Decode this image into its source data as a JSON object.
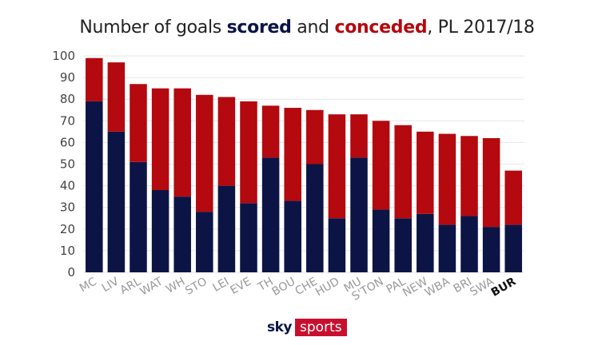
{
  "title": {
    "prefix": "Number of goals ",
    "scored": "scored",
    "middle": " and ",
    "conceded": "conceded",
    "suffix": ", PL 2017/18"
  },
  "logo": {
    "sky": "sky",
    "sports": "sports"
  },
  "colors": {
    "scored": "#0c1445",
    "conceded": "#b3090f",
    "grid": "#e6e6e6"
  },
  "chart_data": {
    "type": "bar",
    "stacked": true,
    "title": "Number of goals scored and conceded, PL 2017/18",
    "xlabel": "",
    "ylabel": "",
    "ylim": [
      0,
      100
    ],
    "yticks": [
      0,
      10,
      20,
      30,
      40,
      50,
      60,
      70,
      80,
      90,
      100
    ],
    "grid": true,
    "categories": [
      "MC",
      "LIV",
      "ARL",
      "WAT",
      "WH",
      "STO",
      "LEI",
      "EVE",
      "TH",
      "BOU",
      "CHE",
      "HUD",
      "MU",
      "S'TON",
      "PAL",
      "NEW",
      "WBA",
      "BRI",
      "SWA",
      "BUR"
    ],
    "highlight": "BUR",
    "series": [
      {
        "name": "scored",
        "values": [
          79,
          65,
          51,
          38,
          35,
          28,
          40,
          32,
          53,
          33,
          50,
          25,
          53,
          29,
          25,
          27,
          22,
          26,
          21,
          22
        ]
      },
      {
        "name": "conceded",
        "values": [
          20,
          32,
          36,
          47,
          50,
          54,
          41,
          47,
          24,
          43,
          25,
          48,
          20,
          41,
          43,
          38,
          42,
          37,
          41,
          25
        ]
      }
    ]
  }
}
